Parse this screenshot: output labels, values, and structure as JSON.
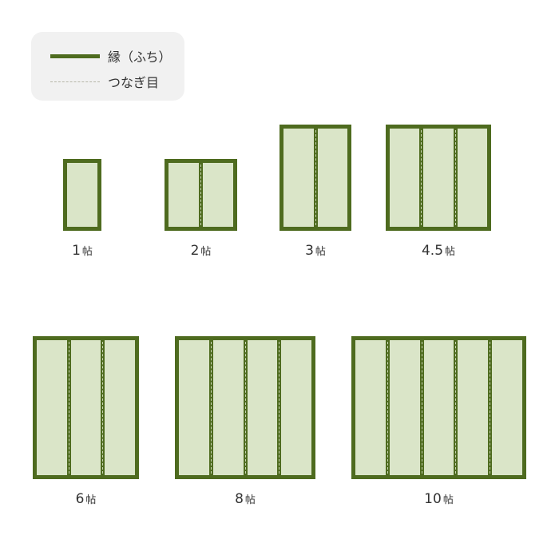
{
  "legend": {
    "border_label": "縁（ふち）",
    "seam_label": "つなぎ目"
  },
  "colors": {
    "border": "#4e6b1f",
    "tatami": "#dae5c8",
    "legend_bg": "#f1f1f1"
  },
  "unit": "帖",
  "mats": [
    {
      "size": "1",
      "panels": 1
    },
    {
      "size": "2",
      "panels": 2
    },
    {
      "size": "3",
      "panels": 2
    },
    {
      "size": "4.5",
      "panels": 3
    },
    {
      "size": "6",
      "panels": 3
    },
    {
      "size": "8",
      "panels": 4
    },
    {
      "size": "10",
      "panels": 5
    }
  ]
}
